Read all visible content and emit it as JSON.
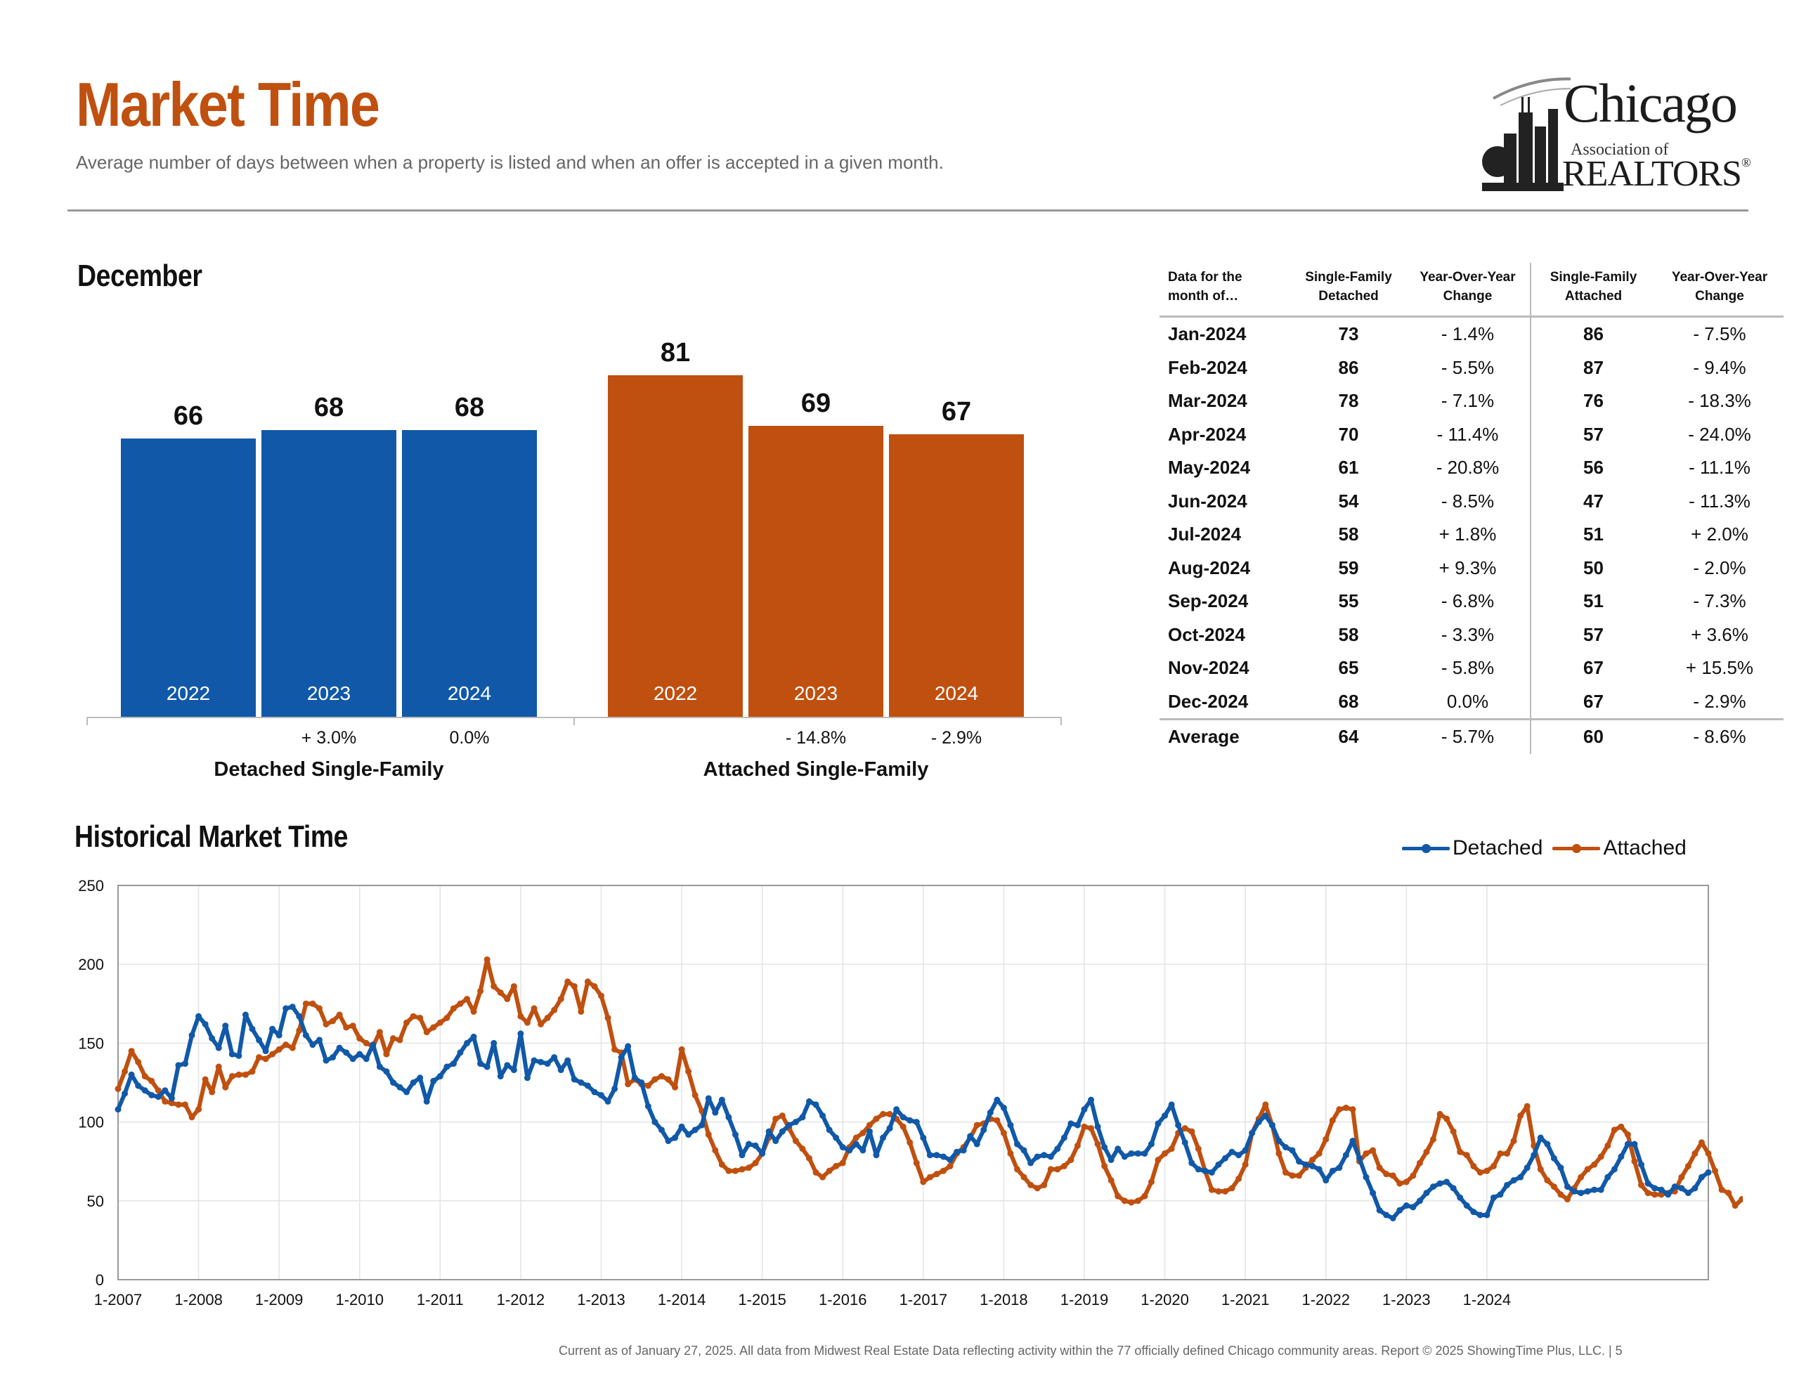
{
  "header": {
    "title": "Market Time",
    "subtitle": "Average number of days between when a property is listed and when an offer is accepted in a given month."
  },
  "logo": {
    "line1": "Chicago",
    "line2": "Association of",
    "line3": "REALTORS",
    "reg": "®"
  },
  "colors": {
    "detached": "#1159a8",
    "attached": "#c0500f",
    "title": "#c0500f"
  },
  "december": {
    "title": "December",
    "chart_data": {
      "type": "bar",
      "groups": [
        {
          "name": "Detached Single-Family",
          "color": "#1159a8",
          "bars": [
            {
              "year": "2022",
              "value": 66,
              "change": ""
            },
            {
              "year": "2023",
              "value": 68,
              "change": "+ 3.0%"
            },
            {
              "year": "2024",
              "value": 68,
              "change": "0.0%"
            }
          ]
        },
        {
          "name": "Attached Single-Family",
          "color": "#c0500f",
          "bars": [
            {
              "year": "2022",
              "value": 81,
              "change": ""
            },
            {
              "year": "2023",
              "value": 69,
              "change": "- 14.8%"
            },
            {
              "year": "2024",
              "value": 67,
              "change": "- 2.9%"
            }
          ]
        }
      ]
    }
  },
  "table": {
    "headers": [
      "Data for the month of…",
      "Single-Family Detached",
      "Year-Over-Year Change",
      "Single-Family Attached",
      "Year-Over-Year Change"
    ],
    "rows": [
      [
        "Jan-2024",
        "73",
        "- 1.4%",
        "86",
        "- 7.5%"
      ],
      [
        "Feb-2024",
        "86",
        "- 5.5%",
        "87",
        "- 9.4%"
      ],
      [
        "Mar-2024",
        "78",
        "- 7.1%",
        "76",
        "- 18.3%"
      ],
      [
        "Apr-2024",
        "70",
        "- 11.4%",
        "57",
        "- 24.0%"
      ],
      [
        "May-2024",
        "61",
        "- 20.8%",
        "56",
        "- 11.1%"
      ],
      [
        "Jun-2024",
        "54",
        "- 8.5%",
        "47",
        "- 11.3%"
      ],
      [
        "Jul-2024",
        "58",
        "+ 1.8%",
        "51",
        "+ 2.0%"
      ],
      [
        "Aug-2024",
        "59",
        "+ 9.3%",
        "50",
        "- 2.0%"
      ],
      [
        "Sep-2024",
        "55",
        "- 6.8%",
        "51",
        "- 7.3%"
      ],
      [
        "Oct-2024",
        "58",
        "- 3.3%",
        "57",
        "+ 3.6%"
      ],
      [
        "Nov-2024",
        "65",
        "- 5.8%",
        "67",
        "+ 15.5%"
      ],
      [
        "Dec-2024",
        "68",
        "0.0%",
        "67",
        "- 2.9%"
      ]
    ],
    "average": [
      "Average",
      "64",
      "- 5.7%",
      "60",
      "- 8.6%"
    ]
  },
  "historical": {
    "title": "Historical Market Time",
    "chart_data": {
      "type": "line",
      "x_start": "1-2007",
      "x_ticks": [
        "1-2007",
        "1-2008",
        "1-2009",
        "1-2010",
        "1-2011",
        "1-2012",
        "1-2013",
        "1-2014",
        "1-2015",
        "1-2016",
        "1-2017",
        "1-2018",
        "1-2019",
        "1-2020",
        "1-2021",
        "1-2022",
        "1-2023",
        "1-2024"
      ],
      "y_ticks": [
        0,
        50,
        100,
        150,
        200,
        250
      ],
      "ylim": [
        0,
        250
      ],
      "series": [
        {
          "name": "Detached",
          "color": "#1159a8",
          "values": [
            108,
            118,
            130,
            123,
            120,
            117,
            116,
            120,
            115,
            136,
            137,
            155,
            167,
            162,
            153,
            147,
            161,
            143,
            142,
            168,
            159,
            152,
            145,
            159,
            155,
            172,
            173,
            167,
            155,
            149,
            152,
            139,
            141,
            147,
            144,
            140,
            143,
            140,
            149,
            135,
            132,
            125,
            122,
            119,
            125,
            128,
            113,
            126,
            129,
            135,
            137,
            144,
            150,
            154,
            137,
            135,
            150,
            129,
            136,
            133,
            156,
            128,
            139,
            138,
            137,
            141,
            133,
            139,
            127,
            125,
            123,
            119,
            117,
            113,
            121,
            141,
            148,
            128,
            125,
            110,
            100,
            95,
            88,
            90,
            97,
            92,
            95,
            98,
            115,
            106,
            114,
            103,
            92,
            79,
            86,
            85,
            80,
            94,
            88,
            94,
            98,
            100,
            103,
            113,
            111,
            104,
            95,
            90,
            84,
            82,
            86,
            82,
            94,
            79,
            90,
            96,
            108,
            103,
            101,
            100,
            90,
            79,
            79,
            78,
            76,
            81,
            82,
            91,
            86,
            95,
            106,
            114,
            109,
            98,
            86,
            82,
            74,
            78,
            79,
            78,
            83,
            90,
            99,
            98,
            108,
            114,
            97,
            84,
            76,
            83,
            78,
            80,
            80,
            80,
            86,
            99,
            104,
            111,
            98,
            87,
            74,
            70,
            69,
            68,
            73,
            77,
            81,
            79,
            82,
            93,
            100,
            104,
            98,
            88,
            84,
            82,
            75,
            73,
            72,
            70,
            63,
            69,
            71,
            79,
            88,
            77,
            65,
            55,
            44,
            41,
            39,
            44,
            47,
            46,
            50,
            55,
            59,
            61,
            62,
            58,
            52,
            47,
            43,
            41,
            41,
            52,
            54,
            60,
            63,
            65,
            71,
            79,
            90,
            86,
            77,
            71,
            59,
            56,
            55,
            56,
            57,
            57,
            65,
            70,
            78,
            86,
            86,
            73,
            61,
            58,
            57,
            54,
            59,
            58,
            55,
            58,
            65,
            68
          ]
        },
        {
          "name": "Attached",
          "color": "#c0500f",
          "values": [
            121,
            132,
            145,
            138,
            129,
            126,
            120,
            113,
            112,
            111,
            111,
            103,
            108,
            127,
            119,
            135,
            122,
            129,
            130,
            130,
            132,
            141,
            140,
            143,
            146,
            149,
            147,
            158,
            175,
            175,
            172,
            162,
            164,
            168,
            160,
            161,
            153,
            150,
            148,
            157,
            143,
            153,
            152,
            163,
            167,
            166,
            157,
            160,
            163,
            166,
            172,
            175,
            178,
            170,
            183,
            203,
            186,
            182,
            178,
            186,
            167,
            163,
            172,
            162,
            166,
            171,
            178,
            189,
            186,
            170,
            189,
            186,
            180,
            166,
            146,
            144,
            124,
            127,
            124,
            123,
            127,
            129,
            127,
            122,
            146,
            132,
            117,
            107,
            92,
            82,
            73,
            69,
            69,
            70,
            71,
            74,
            80,
            90,
            102,
            104,
            96,
            88,
            83,
            77,
            68,
            65,
            69,
            72,
            74,
            84,
            90,
            93,
            98,
            102,
            105,
            105,
            102,
            97,
            87,
            74,
            62,
            65,
            67,
            69,
            72,
            80,
            84,
            90,
            98,
            99,
            102,
            101,
            93,
            80,
            70,
            65,
            60,
            58,
            60,
            70,
            70,
            72,
            76,
            85,
            97,
            96,
            86,
            72,
            63,
            53,
            50,
            49,
            50,
            53,
            62,
            76,
            80,
            83,
            93,
            96,
            94,
            83,
            69,
            57,
            56,
            56,
            58,
            64,
            73,
            93,
            102,
            111,
            98,
            80,
            68,
            66,
            66,
            71,
            76,
            80,
            89,
            101,
            108,
            109,
            108,
            75,
            80,
            82,
            71,
            67,
            66,
            61,
            62,
            66,
            74,
            81,
            89,
            105,
            102,
            94,
            81,
            79,
            72,
            68,
            69,
            72,
            80,
            80,
            88,
            104,
            110,
            85,
            70,
            63,
            59,
            54,
            51,
            58,
            65,
            70,
            73,
            78,
            85,
            95,
            97,
            92,
            75,
            60,
            55,
            54,
            54,
            55,
            56,
            65,
            72,
            80,
            87,
            80,
            69,
            57,
            55,
            47,
            51,
            51,
            51,
            55,
            68,
            67
          ]
        }
      ]
    }
  },
  "footer": "Current as of January 27, 2025.  All data from Midwest Real Estate Data reflecting activity within the 77 officially defined Chicago community areas. Report © 2025 ShowingTime Plus, LLC.  |  5"
}
